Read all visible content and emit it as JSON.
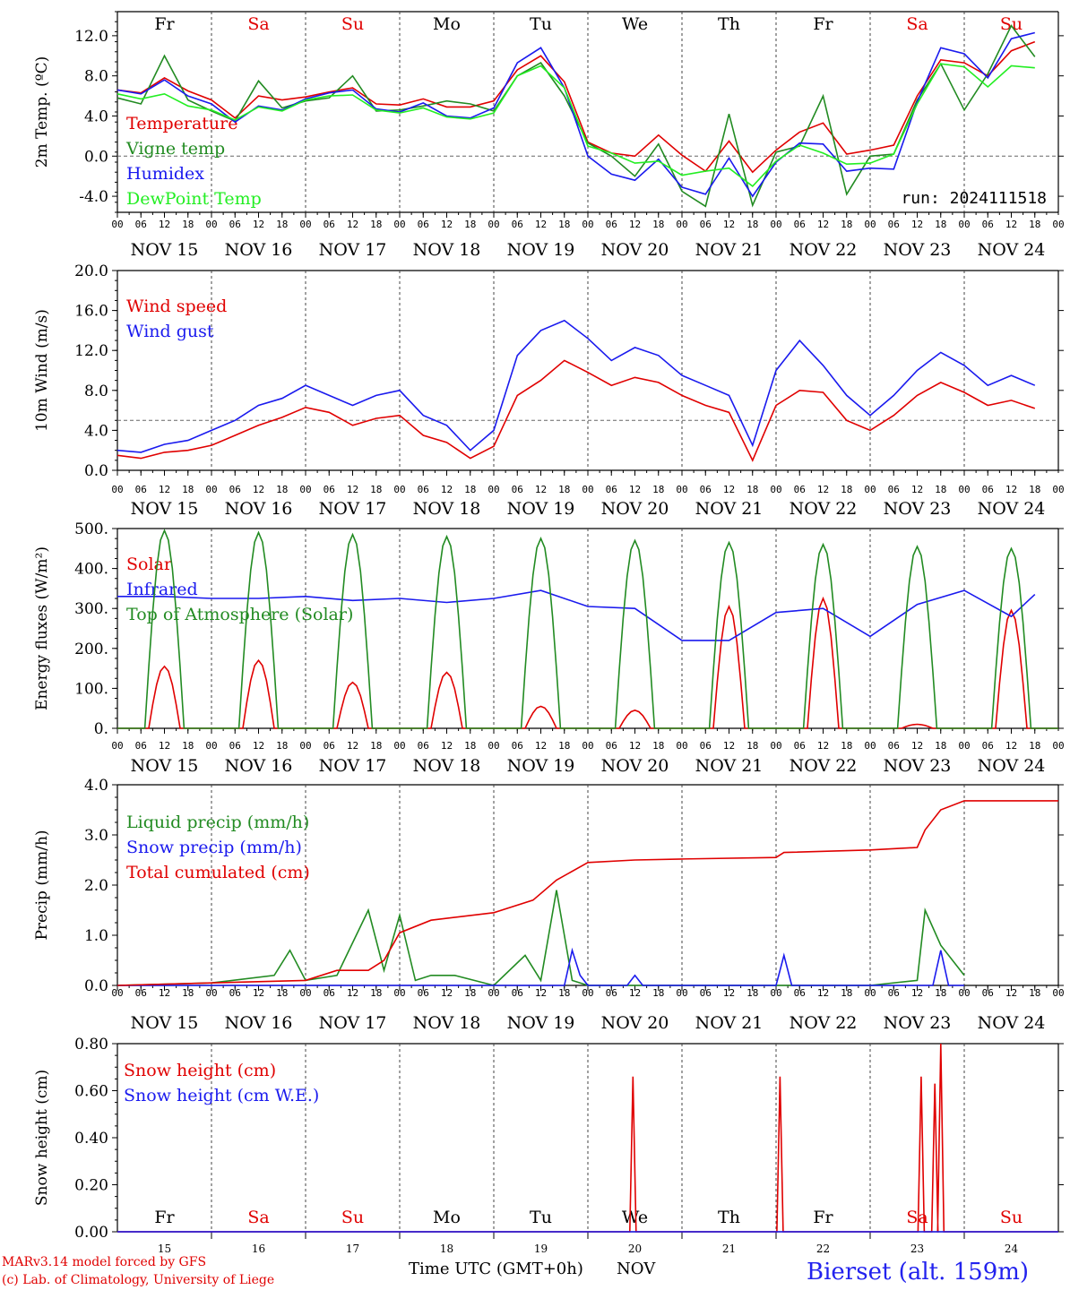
{
  "run_label": "run: 2024111518",
  "station_label": "Bierset (alt. 159m)",
  "footer": {
    "model": "MARv3.14 model forced by GFS",
    "copyright": "(c) Lab. of Climatology, University of Liege",
    "time_axis": "Time UTC (GMT+0h)",
    "month": "NOV"
  },
  "colors": {
    "red": "#e00000",
    "green": "#228b22",
    "blue": "#1a1aee",
    "lightgreen": "#22ee22",
    "sky": "#0000ff"
  },
  "days": [
    {
      "abbr": "Fr",
      "weekend": false,
      "date": "NOV 15",
      "num": "15"
    },
    {
      "abbr": "Sa",
      "weekend": true,
      "date": "NOV 16",
      "num": "16"
    },
    {
      "abbr": "Su",
      "weekend": true,
      "date": "NOV 17",
      "num": "17"
    },
    {
      "abbr": "Mo",
      "weekend": false,
      "date": "NOV 18",
      "num": "18"
    },
    {
      "abbr": "Tu",
      "weekend": false,
      "date": "NOV 19",
      "num": "19"
    },
    {
      "abbr": "We",
      "weekend": false,
      "date": "NOV 20",
      "num": "20"
    },
    {
      "abbr": "Th",
      "weekend": false,
      "date": "NOV 21",
      "num": "21"
    },
    {
      "abbr": "Fr",
      "weekend": false,
      "date": "NOV 22",
      "num": "22"
    },
    {
      "abbr": "Sa",
      "weekend": true,
      "date": "NOV 23",
      "num": "23"
    },
    {
      "abbr": "Su",
      "weekend": true,
      "date": "NOV 24",
      "num": "24"
    }
  ],
  "hour_ticks": [
    "00",
    "06",
    "12",
    "18"
  ],
  "last_tick": "00",
  "chart_data": [
    {
      "type": "line",
      "ylabel": "2m Temp. (ºC)",
      "ylim": [
        -5.6,
        14.4
      ],
      "yticks": [
        "-4.0",
        "0.0",
        "4.0",
        "8.0",
        "12.0"
      ],
      "yticks_values": [
        -4,
        0,
        4,
        8,
        12
      ],
      "reference_line": 0,
      "x_unit": "hours since NOV 15 00 UTC",
      "series": [
        {
          "name": "Temperature",
          "color": "red",
          "x": [
            0,
            6,
            12,
            18,
            24,
            30,
            36,
            42,
            48,
            54,
            60,
            66,
            72,
            78,
            84,
            90,
            96,
            102,
            108,
            114,
            120,
            126,
            132,
            138,
            144,
            150,
            156,
            162,
            168,
            174,
            180,
            186,
            192,
            198,
            204,
            210,
            216,
            222,
            228,
            234
          ],
          "y": [
            6.6,
            6.3,
            7.8,
            6.5,
            5.6,
            3.8,
            6.0,
            5.6,
            5.9,
            6.4,
            6.8,
            5.2,
            5.1,
            5.7,
            4.9,
            4.9,
            5.5,
            8.6,
            10.0,
            7.4,
            1.4,
            0.3,
            0.0,
            2.1,
            0.1,
            -1.5,
            1.5,
            -1.6,
            0.6,
            2.4,
            3.3,
            0.2,
            0.6,
            1.1,
            6.0,
            9.6,
            9.3,
            8.0,
            10.5,
            11.4
          ]
        },
        {
          "name": "Vigne temp",
          "color": "green",
          "x": [
            0,
            6,
            12,
            18,
            24,
            30,
            36,
            42,
            48,
            54,
            60,
            66,
            72,
            78,
            84,
            90,
            96,
            102,
            108,
            114,
            120,
            126,
            132,
            138,
            144,
            150,
            156,
            162,
            168,
            174,
            180,
            186,
            192,
            198,
            204,
            210,
            216,
            222,
            228,
            234
          ],
          "y": [
            5.8,
            5.2,
            10.0,
            5.6,
            4.5,
            3.5,
            7.5,
            4.8,
            5.5,
            5.8,
            8.0,
            4.5,
            4.6,
            5.0,
            5.5,
            5.2,
            4.5,
            8.0,
            9.3,
            6.0,
            1.3,
            0.0,
            -2.0,
            1.2,
            -3.5,
            -5.0,
            4.2,
            -4.9,
            0.4,
            1.0,
            6.0,
            -3.8,
            0.0,
            0.2,
            5.6,
            9.2,
            4.6,
            8.2,
            13.0,
            9.9
          ]
        },
        {
          "name": "Humidex",
          "color": "blue",
          "x": [
            0,
            6,
            12,
            18,
            24,
            30,
            36,
            42,
            48,
            54,
            60,
            66,
            72,
            78,
            84,
            90,
            96,
            102,
            108,
            114,
            120,
            126,
            132,
            138,
            144,
            150,
            156,
            162,
            168,
            174,
            180,
            186,
            192,
            198,
            204,
            210,
            216,
            222,
            228,
            234
          ],
          "y": [
            6.6,
            6.2,
            7.6,
            6.0,
            5.2,
            3.4,
            5.0,
            4.6,
            5.7,
            6.3,
            6.6,
            4.7,
            4.4,
            5.3,
            4.0,
            3.8,
            4.8,
            9.3,
            10.8,
            6.8,
            0.0,
            -1.8,
            -2.4,
            -0.3,
            -3.1,
            -3.8,
            -0.2,
            -4.0,
            -0.6,
            1.3,
            1.2,
            -1.5,
            -1.2,
            -1.3,
            5.4,
            10.8,
            10.2,
            7.8,
            11.7,
            12.3
          ]
        },
        {
          "name": "DewPoint Temp",
          "color": "lightgreen",
          "x": [
            0,
            6,
            12,
            18,
            24,
            30,
            36,
            42,
            48,
            54,
            60,
            66,
            72,
            78,
            84,
            90,
            96,
            102,
            108,
            114,
            120,
            126,
            132,
            138,
            144,
            150,
            156,
            162,
            168,
            174,
            180,
            186,
            192,
            198,
            204,
            210,
            216,
            222,
            228,
            234
          ],
          "y": [
            6.2,
            5.7,
            6.2,
            5.0,
            4.6,
            3.6,
            4.9,
            4.5,
            5.6,
            6.0,
            6.1,
            4.6,
            4.3,
            4.8,
            3.9,
            3.7,
            4.3,
            8.0,
            9.0,
            6.8,
            1.0,
            0.3,
            -0.7,
            -0.5,
            -1.9,
            -1.5,
            -1.2,
            -3.0,
            -0.5,
            1.1,
            0.3,
            -0.8,
            -0.7,
            0.2,
            5.2,
            9.2,
            8.9,
            6.9,
            9.0,
            8.8
          ]
        }
      ]
    },
    {
      "type": "line",
      "ylabel": "10m Wind (m/s)",
      "ylim": [
        0,
        20
      ],
      "yticks": [
        "0.0",
        "4.0",
        "8.0",
        "12.0",
        "16.0",
        "20.0"
      ],
      "yticks_values": [
        0,
        4,
        8,
        12,
        16,
        20
      ],
      "reference_line": 5,
      "x_unit": "hours since NOV 15 00 UTC",
      "series": [
        {
          "name": "Wind speed",
          "color": "red",
          "x": [
            0,
            6,
            12,
            18,
            24,
            30,
            36,
            42,
            48,
            54,
            60,
            66,
            72,
            78,
            84,
            90,
            96,
            102,
            108,
            114,
            120,
            126,
            132,
            138,
            144,
            150,
            156,
            162,
            168,
            174,
            180,
            186,
            192,
            198,
            204,
            210,
            216,
            222,
            228,
            234
          ],
          "y": [
            1.5,
            1.2,
            1.8,
            2.0,
            2.5,
            3.5,
            4.5,
            5.3,
            6.3,
            5.8,
            4.5,
            5.2,
            5.5,
            3.5,
            2.8,
            1.2,
            2.4,
            7.5,
            9.0,
            11.0,
            9.8,
            8.5,
            9.3,
            8.8,
            7.5,
            6.5,
            5.8,
            1.0,
            6.5,
            8.0,
            7.8,
            5.0,
            4.0,
            5.5,
            7.5,
            8.8,
            7.8,
            6.5,
            7.0,
            6.2
          ]
        },
        {
          "name": "Wind gust",
          "color": "blue",
          "x": [
            0,
            6,
            12,
            18,
            24,
            30,
            36,
            42,
            48,
            54,
            60,
            66,
            72,
            78,
            84,
            90,
            96,
            102,
            108,
            114,
            120,
            126,
            132,
            138,
            144,
            150,
            156,
            162,
            168,
            174,
            180,
            186,
            192,
            198,
            204,
            210,
            216,
            222,
            228,
            234
          ],
          "y": [
            2.0,
            1.8,
            2.6,
            3.0,
            4.0,
            5.0,
            6.5,
            7.2,
            8.5,
            7.5,
            6.5,
            7.5,
            8.0,
            5.5,
            4.5,
            2.0,
            4.0,
            11.5,
            14.0,
            15.0,
            13.2,
            11.0,
            12.3,
            11.5,
            9.5,
            8.5,
            7.5,
            2.5,
            10.0,
            13.0,
            10.5,
            7.5,
            5.5,
            7.5,
            10.0,
            11.8,
            10.5,
            8.5,
            9.5,
            8.5
          ]
        }
      ]
    },
    {
      "type": "line",
      "ylabel": "Energy fluxes (W/m²)",
      "ylim": [
        0,
        500
      ],
      "yticks": [
        "0.",
        "100.",
        "200.",
        "300.",
        "400.",
        "500."
      ],
      "yticks_values": [
        0,
        100,
        200,
        300,
        400,
        500
      ],
      "x_unit": "hours since NOV 15 00 UTC",
      "series": [
        {
          "name": "Solar",
          "color": "red",
          "peaks": [
            155,
            170,
            115,
            140,
            55,
            45,
            305,
            325,
            10,
            295
          ]
        },
        {
          "name": "Infrared",
          "color": "blue",
          "x": [
            0,
            12,
            24,
            36,
            48,
            60,
            72,
            84,
            96,
            108,
            120,
            132,
            144,
            156,
            168,
            180,
            192,
            204,
            216,
            228,
            234
          ],
          "y": [
            330,
            330,
            325,
            325,
            330,
            320,
            325,
            315,
            325,
            345,
            305,
            300,
            220,
            220,
            290,
            300,
            230,
            310,
            345,
            280,
            335
          ]
        },
        {
          "name": "Top of Atmosphere (Solar)",
          "color": "green",
          "peaks": [
            495,
            490,
            485,
            480,
            475,
            470,
            465,
            460,
            455,
            450
          ]
        }
      ]
    },
    {
      "type": "line",
      "ylabel": "Precip (mm/h)",
      "ylim": [
        0,
        4
      ],
      "yticks": [
        "0.0",
        "1.0",
        "2.0",
        "3.0",
        "4.0"
      ],
      "yticks_values": [
        0,
        1,
        2,
        3,
        4
      ],
      "x_unit": "hours since NOV 15 00 UTC",
      "series": [
        {
          "name": "Liquid precip (mm/h)",
          "color": "green",
          "x": [
            0,
            24,
            40,
            44,
            48,
            56,
            64,
            68,
            72,
            76,
            80,
            86,
            96,
            104,
            108,
            112,
            116,
            120,
            132,
            144,
            168,
            192,
            204,
            206,
            210,
            216
          ],
          "y": [
            0,
            0.05,
            0.2,
            0.7,
            0.1,
            0.2,
            1.5,
            0.3,
            1.4,
            0.1,
            0.2,
            0.2,
            0.0,
            0.6,
            0.1,
            1.9,
            0.1,
            0.0,
            0.0,
            0.0,
            0.0,
            0.0,
            0.1,
            1.5,
            0.8,
            0.2
          ]
        },
        {
          "name": "Snow precip (mm/h)",
          "color": "blue",
          "x": [
            0,
            114,
            116,
            118,
            120,
            130,
            132,
            134,
            168,
            170,
            172,
            208,
            210,
            212,
            216
          ],
          "y": [
            0,
            0,
            0.7,
            0.2,
            0,
            0,
            0.2,
            0,
            0,
            0.6,
            0,
            0,
            0.7,
            0,
            0
          ]
        },
        {
          "name": "Total cumulated (cm)",
          "color": "red",
          "x": [
            0,
            24,
            48,
            56,
            64,
            68,
            72,
            80,
            96,
            106,
            112,
            120,
            132,
            144,
            168,
            170,
            192,
            204,
            206,
            210,
            216,
            240
          ],
          "y": [
            0.0,
            0.05,
            0.1,
            0.3,
            0.3,
            0.5,
            1.05,
            1.3,
            1.45,
            1.7,
            2.1,
            2.45,
            2.5,
            2.52,
            2.55,
            2.65,
            2.7,
            2.75,
            3.1,
            3.5,
            3.68,
            3.68
          ]
        }
      ]
    },
    {
      "type": "line",
      "ylabel": "Snow height (cm)",
      "ylim": [
        0,
        0.8
      ],
      "yticks": [
        "0.00",
        "0.20",
        "0.40",
        "0.60",
        "0.80"
      ],
      "yticks_values": [
        0,
        0.2,
        0.4,
        0.6,
        0.8
      ],
      "x_unit": "hours since NOV 15 00 UTC",
      "series": [
        {
          "name": "Snow height (cm)",
          "color": "red",
          "spikes": [
            [
              131.5,
              0.66
            ],
            [
              169.0,
              0.66
            ],
            [
              205.0,
              0.66
            ],
            [
              208.5,
              0.63
            ],
            [
              210.0,
              0.8
            ]
          ]
        },
        {
          "name": "Snow height (cm W.E.)",
          "color": "blue",
          "spikes": []
        }
      ]
    }
  ]
}
